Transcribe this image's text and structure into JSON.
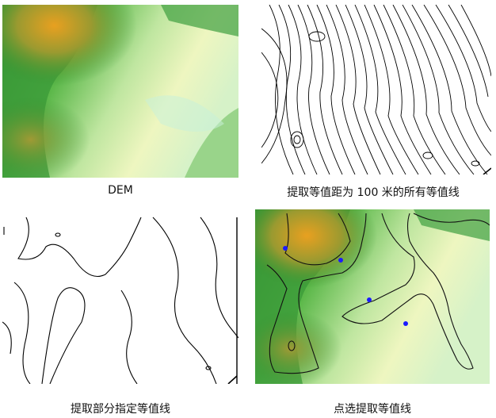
{
  "captions": {
    "dem": "DEM",
    "all_contours": "提取等值距为 100 米的所有等值线",
    "selected_contours": "提取部分指定等值线",
    "pick_contours": "点选提取等值线"
  },
  "colors": {
    "peak_orange": "#e8a020",
    "olive": "#9a9a30",
    "dark_green": "#2f8f2f",
    "green": "#5cb84a",
    "light_green": "#bfe6a0",
    "pale_yellow": "#eef6c0",
    "pale_cyan": "#c8f0d8",
    "contour_black": "#000000",
    "pick_point_blue": "#1a1aff"
  },
  "panels": [
    {
      "id": "dem",
      "type": "hillshade-dem"
    },
    {
      "id": "all_contours",
      "type": "contour-lines"
    },
    {
      "id": "selected_contours",
      "type": "contour-lines"
    },
    {
      "id": "pick_contours",
      "type": "dem-with-contours",
      "pick_points": 4
    }
  ]
}
